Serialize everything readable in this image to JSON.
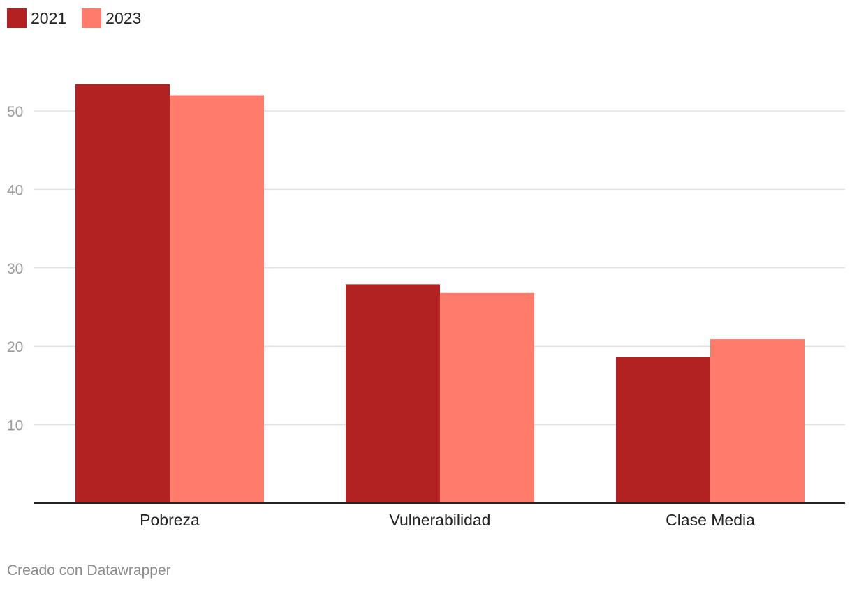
{
  "chart_data": {
    "type": "bar",
    "categories": [
      "Pobreza",
      "Vulnerabilidad",
      "Clase Media"
    ],
    "series": [
      {
        "name": "2021",
        "color": "#b22222",
        "values": [
          53.4,
          27.9,
          18.6
        ]
      },
      {
        "name": "2023",
        "color": "#ff7b6b",
        "values": [
          52.0,
          26.8,
          20.9
        ]
      }
    ],
    "yticks": [
      10,
      20,
      30,
      40,
      50
    ],
    "ylim": [
      0,
      55
    ],
    "grid": true,
    "legend_position": "top-left",
    "title": "",
    "xlabel": "",
    "ylabel": ""
  },
  "footer": {
    "credit": "Creado con Datawrapper"
  }
}
